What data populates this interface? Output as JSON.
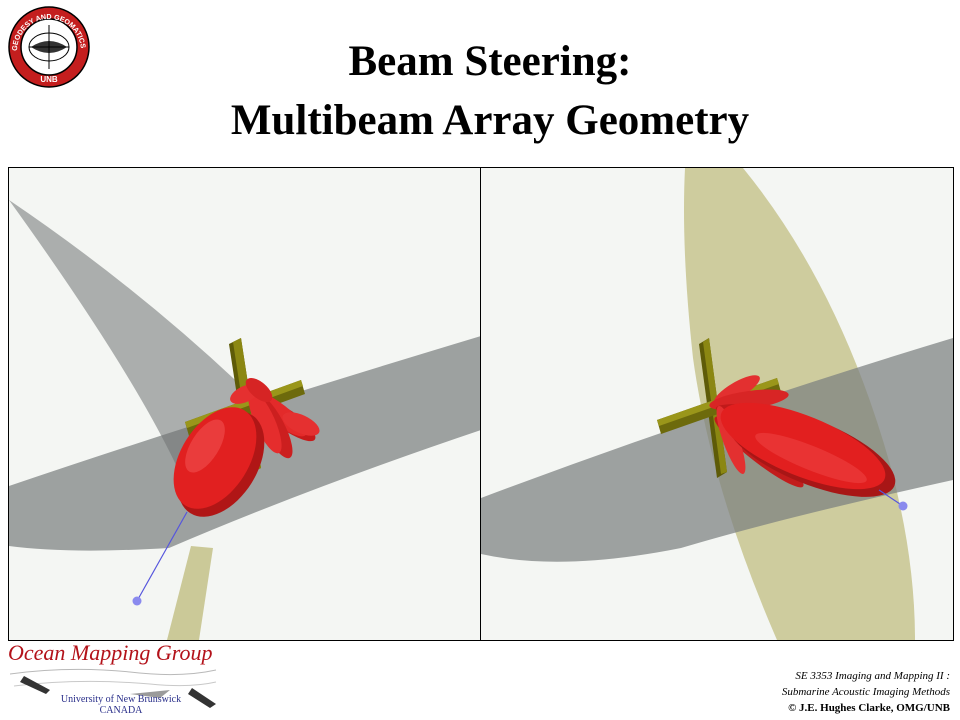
{
  "title": {
    "line1": "Beam Steering:",
    "line2": "Multibeam Array Geometry"
  },
  "logo": {
    "ring_text": "GEODESY AND GEOMATICS ENGINEERING",
    "bottom_text": "UNB"
  },
  "footer": {
    "group_name": "Ocean Mapping Group",
    "university_line1": "University of New Brunswick",
    "university_line2": "CANADA",
    "course_line1": "SE 3353 Imaging and Mapping II :",
    "course_line2": "Submarine Acoustic Imaging Methods",
    "copyright": "© J.E. Hughes Clarke, OMG/UNB"
  },
  "colors": {
    "lobe_red": "#e32222",
    "array_olive": "#6d6a0c",
    "fan_grey": "#7c7f7f",
    "fan_tan": "#c7c48e",
    "beam_line": "#5555dd",
    "group_red": "#b3121a"
  }
}
